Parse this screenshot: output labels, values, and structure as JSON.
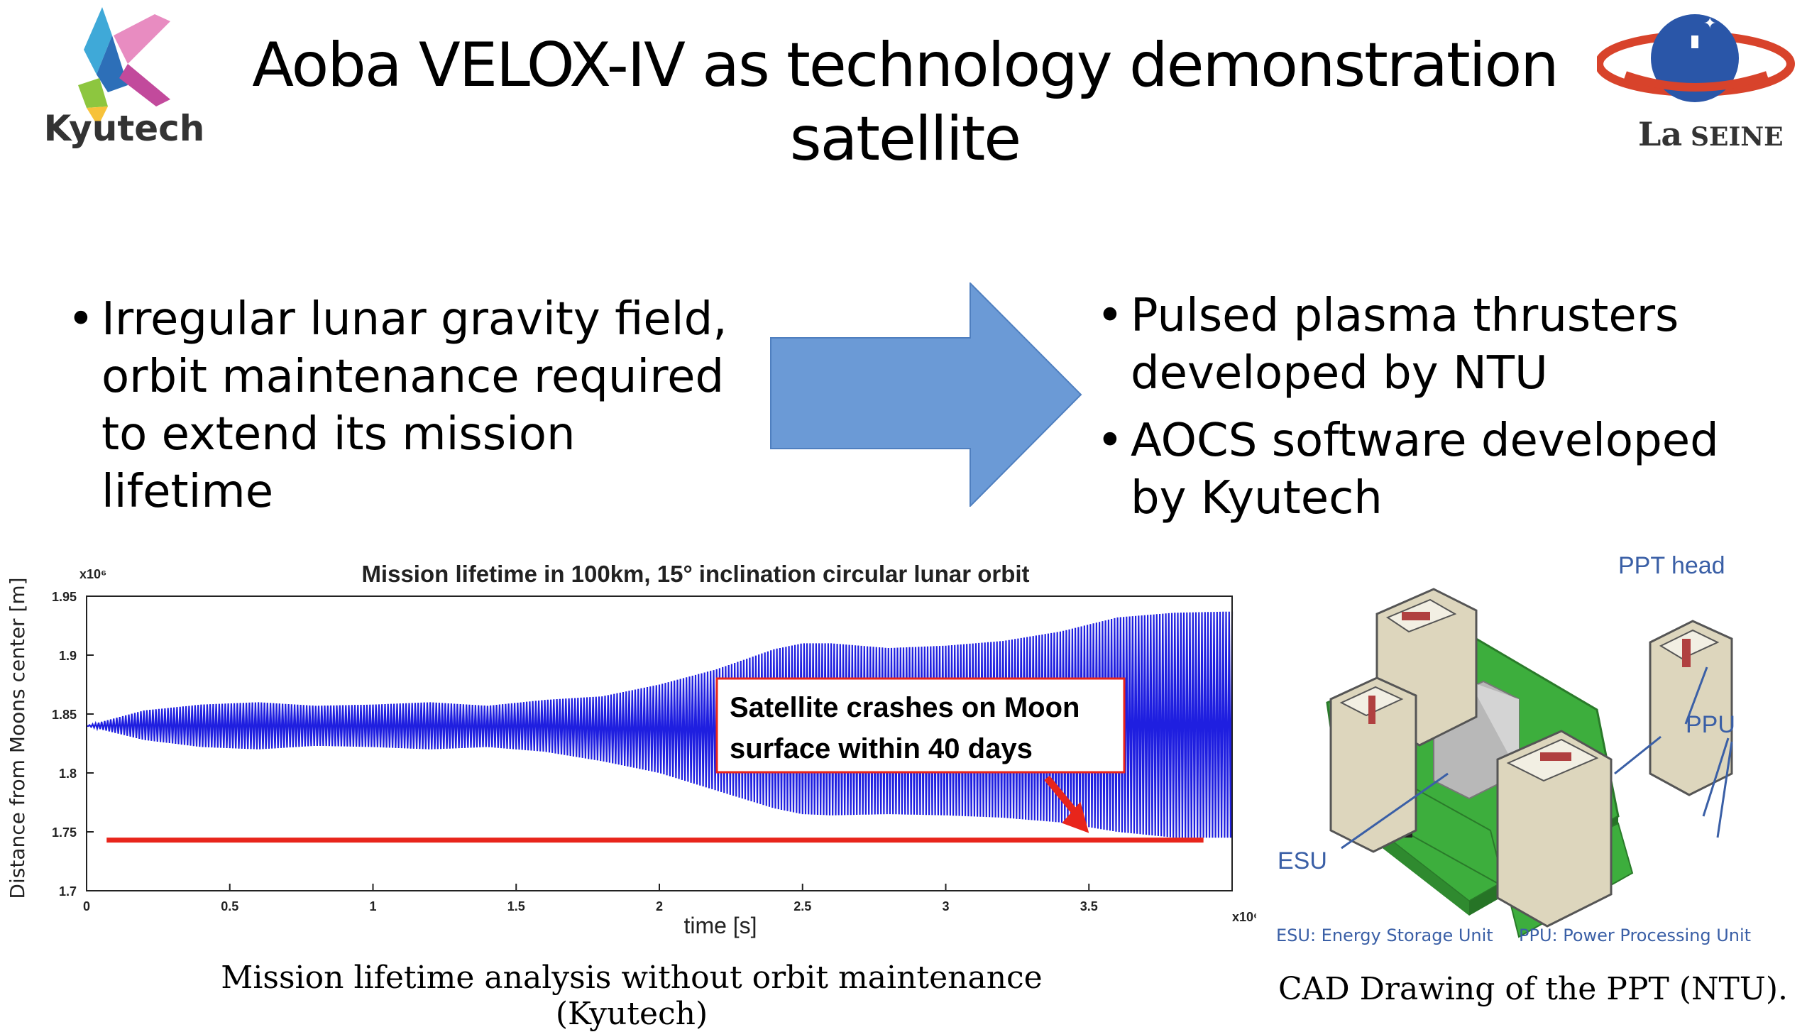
{
  "slide": {
    "title_line1": "Aoba VELOX-IV as technology demonstration",
    "title_line2": "satellite",
    "left_bullets": [
      "Irregular lunar gravity field, orbit maintenance required to extend its mission lifetime"
    ],
    "right_bullets": [
      "Pulsed plasma thrusters developed by NTU",
      "AOCS software developed by Kyutech"
    ],
    "arrow_color": "#6b9ad6"
  },
  "logos": {
    "kyutech_text": "Kyutech",
    "laseine_text_la": "La",
    "laseine_text_seine": "SEINE"
  },
  "chart_caption": "Mission lifetime analysis without orbit maintenance (Kyutech)",
  "chart_data": {
    "type": "line",
    "title": "Mission lifetime in 100km, 15° inclination circular lunar orbit",
    "xlabel": "time [s]",
    "ylabel": "Distance from Moons center [m]",
    "x_multiplier": "x10⁶",
    "y_multiplier": "x10⁶",
    "xlim": [
      0,
      4.0
    ],
    "ylim": [
      1.7,
      1.95
    ],
    "xticks": [
      "0",
      "0.5",
      "1",
      "1.5",
      "2",
      "2.5",
      "3",
      "3.5"
    ],
    "yticks": [
      "1.95",
      "1.9",
      "1.85",
      "1.8",
      "1.75",
      "1.7"
    ],
    "series": [
      {
        "color": "#1f1fe0",
        "envelope_x": [
          0.0,
          0.2,
          0.4,
          0.6,
          0.8,
          1.0,
          1.2,
          1.4,
          1.6,
          1.8,
          2.0,
          2.2,
          2.4,
          2.5,
          2.6,
          2.8,
          3.0,
          3.2,
          3.4,
          3.6,
          3.8,
          4.0
        ],
        "envelope_max": [
          1.84,
          1.853,
          1.858,
          1.86,
          1.857,
          1.858,
          1.86,
          1.857,
          1.862,
          1.865,
          1.875,
          1.888,
          1.905,
          1.91,
          1.91,
          1.906,
          1.908,
          1.912,
          1.92,
          1.932,
          1.936,
          1.937
        ],
        "envelope_min": [
          1.84,
          1.828,
          1.822,
          1.82,
          1.823,
          1.822,
          1.82,
          1.822,
          1.818,
          1.81,
          1.8,
          1.785,
          1.77,
          1.765,
          1.764,
          1.765,
          1.764,
          1.762,
          1.758,
          1.75,
          1.745,
          1.745
        ]
      }
    ],
    "threshold": {
      "color": "#e8251b",
      "y": 1.743,
      "x_start": 0.07,
      "x_end": 3.9
    },
    "annotation": {
      "line1": "Satellite crashes on Moon",
      "line2": "surface within 40 days",
      "arrow_color": "#e8251b"
    }
  },
  "cad": {
    "labels": {
      "ppt_head": "PPT head",
      "ppu": "PPU",
      "esu": "ESU",
      "esu_full": "ESU: Energy Storage Unit",
      "ppu_full": "PPU: Power Processing Unit"
    },
    "label_color": "#3a5fa6",
    "caption": "CAD Drawing of the PPT (NTU)."
  }
}
